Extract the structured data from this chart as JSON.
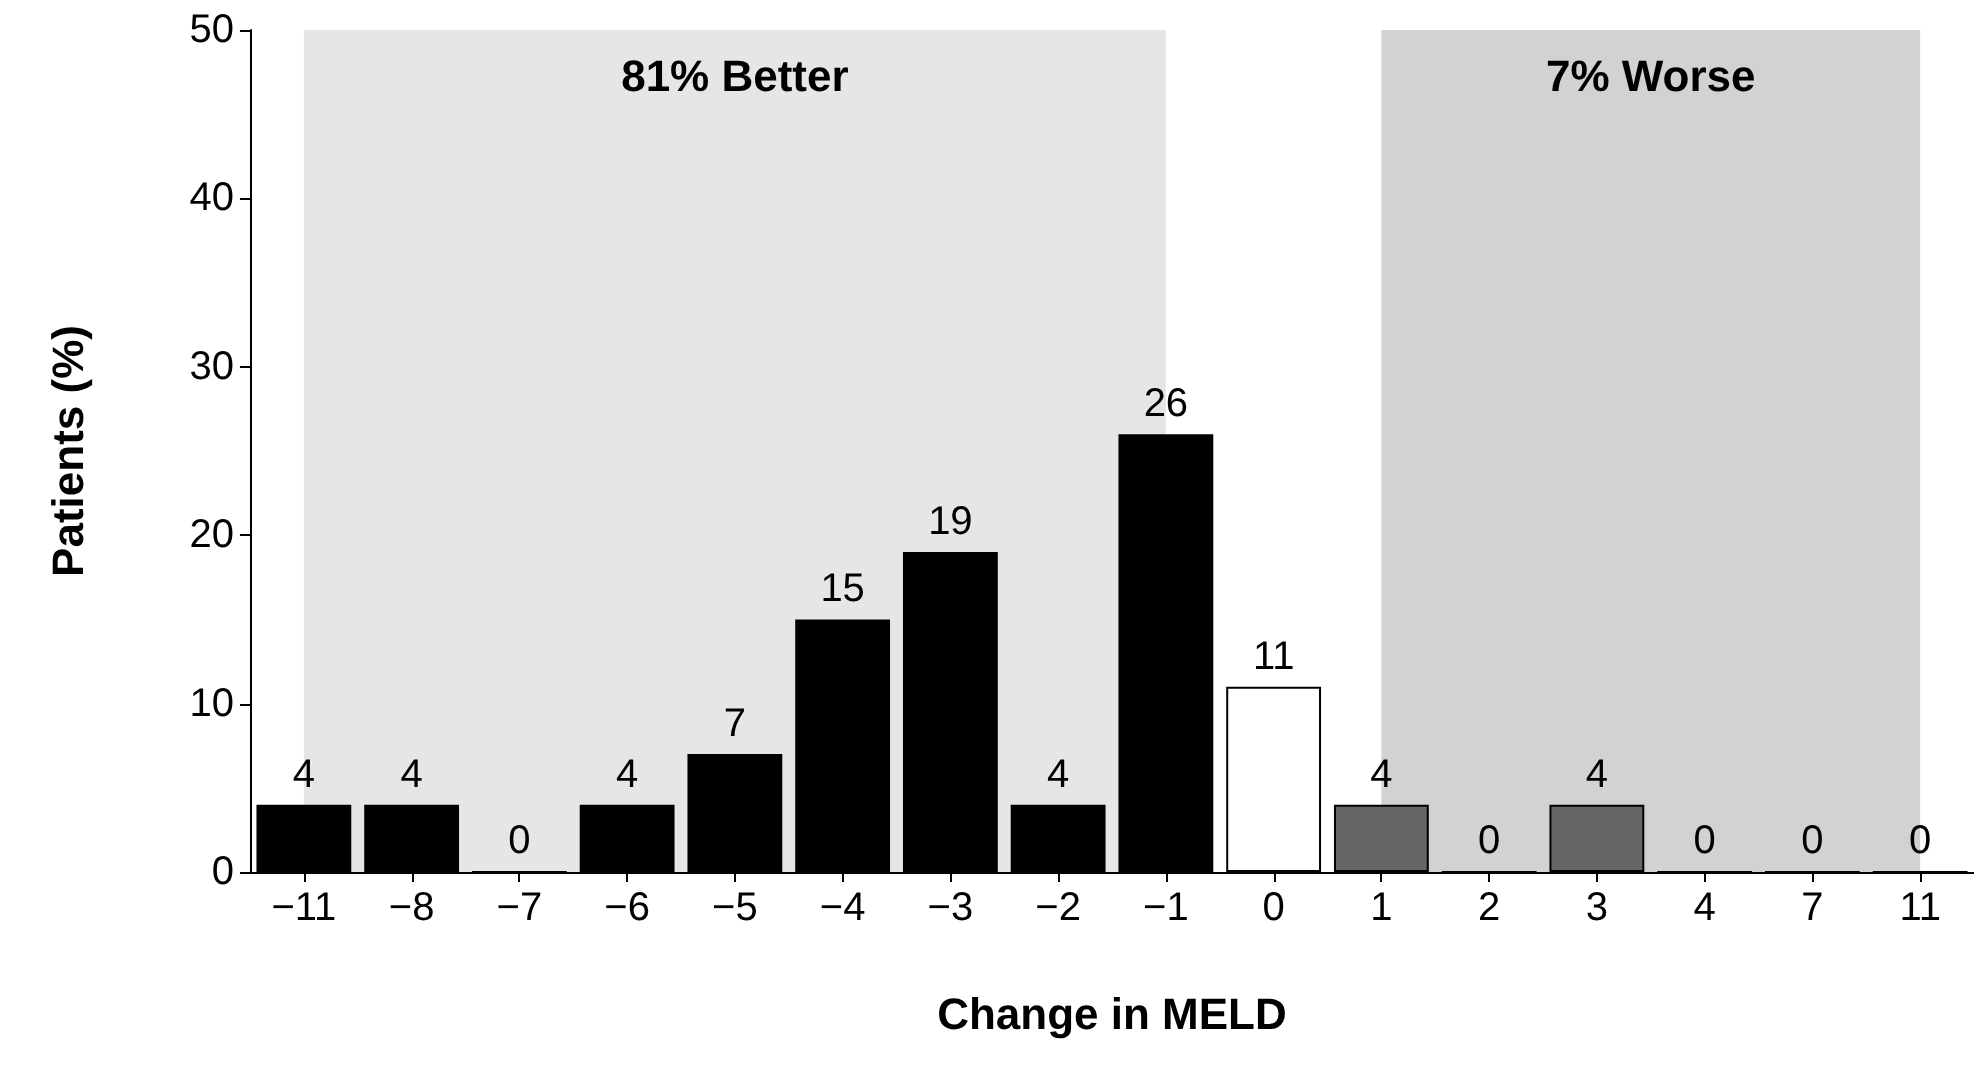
{
  "chart_data": {
    "type": "bar",
    "xlabel": "Change in MELD",
    "ylabel": "Patients (%)",
    "categories": [
      "−11",
      "−8",
      "−7",
      "−6",
      "−5",
      "−4",
      "−3",
      "−2",
      "−1",
      "0",
      "1",
      "2",
      "3",
      "4",
      "7",
      "11"
    ],
    "values": [
      4,
      4,
      0,
      4,
      7,
      15,
      19,
      4,
      26,
      11,
      4,
      0,
      4,
      0,
      0,
      0
    ],
    "colors": [
      "#000000",
      "#000000",
      "#000000",
      "#000000",
      "#000000",
      "#000000",
      "#000000",
      "#000000",
      "#000000",
      "#ffffff",
      "#666666",
      "#666666",
      "#666666",
      "#666666",
      "#666666",
      "#666666"
    ],
    "ylim": [
      0,
      50
    ],
    "yticks": [
      0,
      10,
      20,
      30,
      40,
      50
    ],
    "data_labels": true,
    "bands": [
      {
        "axis": "x",
        "from": "−11",
        "to": "−1",
        "label": "81% Better",
        "color": "#e6e6e7"
      },
      {
        "axis": "x",
        "from": "1",
        "to": "11",
        "label": "7% Worse",
        "color": "#d1d2d4"
      }
    ]
  }
}
